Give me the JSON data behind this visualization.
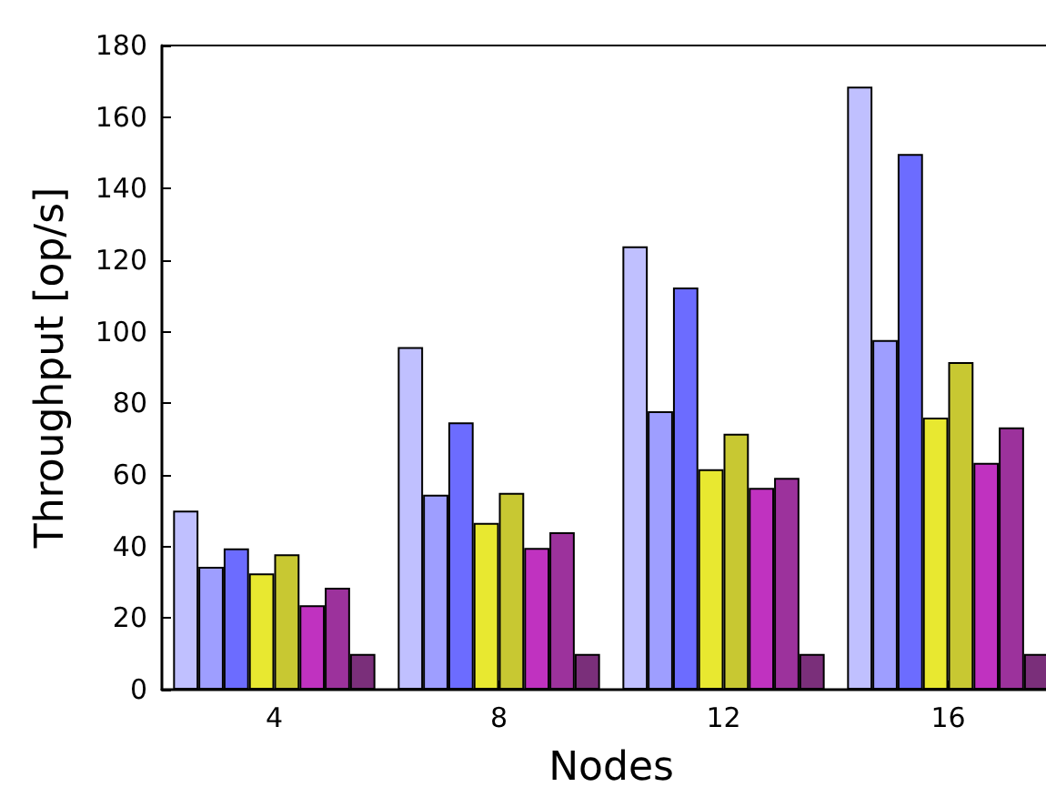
{
  "chart_data": {
    "type": "bar",
    "xlabel": "Nodes",
    "ylabel": "Throughput [op/s]",
    "categories": [
      "4",
      "8",
      "12",
      "16"
    ],
    "ylim": [
      0,
      180
    ],
    "yticks": [
      0,
      20,
      40,
      60,
      80,
      100,
      120,
      140,
      160,
      180
    ],
    "grid": false,
    "series": [
      {
        "color": "#c0c0ff",
        "values": [
          50,
          95.7,
          123.9,
          168.5
        ]
      },
      {
        "color": "#9e9eff",
        "values": [
          34.3,
          54.5,
          77.8,
          97.7
        ]
      },
      {
        "color": "#6c6cff",
        "values": [
          39.5,
          74.7,
          112.4,
          149.7
        ]
      },
      {
        "color": "#e8e830",
        "values": [
          32.5,
          46.6,
          61.6,
          76
        ]
      },
      {
        "color": "#c8c832",
        "values": [
          37.8,
          55,
          71.5,
          91.5
        ]
      },
      {
        "color": "#c032c0",
        "values": [
          23.6,
          39.6,
          56.4,
          63.4
        ]
      },
      {
        "color": "#9c329c",
        "values": [
          28.5,
          44,
          59.2,
          73.3
        ]
      },
      {
        "color": "#7a2f7a",
        "values": [
          10,
          10,
          10,
          10
        ]
      }
    ]
  }
}
